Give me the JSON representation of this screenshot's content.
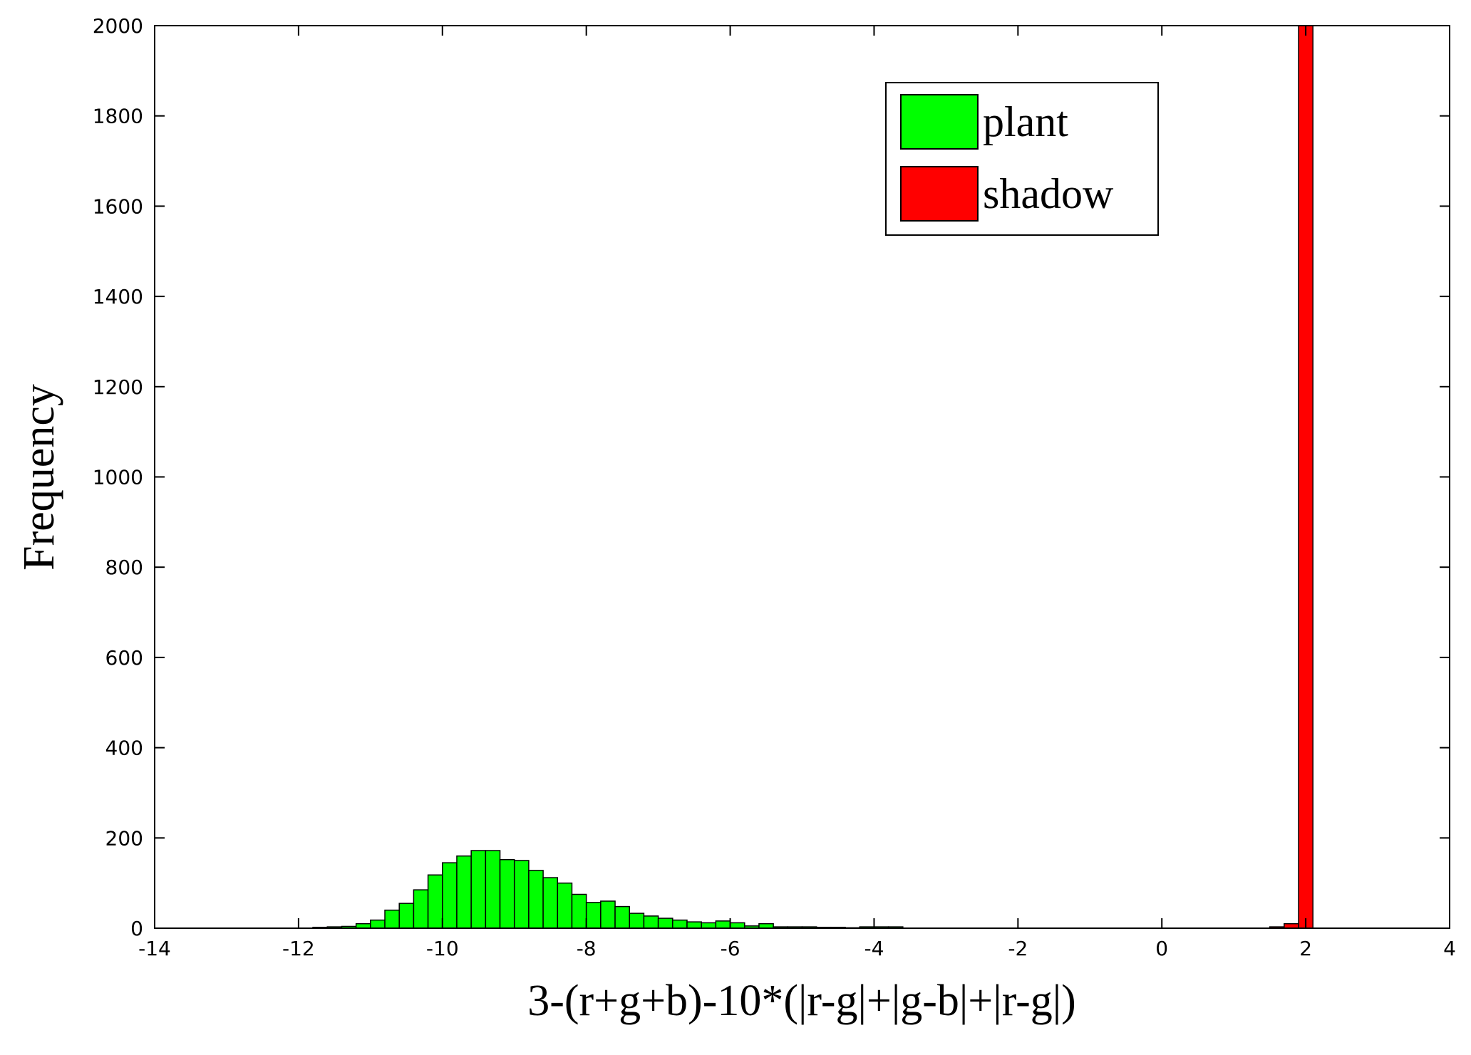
{
  "chart_data": {
    "type": "histogram",
    "xlabel": "3-(r+g+b)-10*(|r-g|+|g-b|+|r-g|)",
    "ylabel": "Frequency",
    "xlim": [
      -14,
      4
    ],
    "ylim": [
      0,
      2000
    ],
    "xticks": [
      -14,
      -12,
      -10,
      -8,
      -6,
      -4,
      -2,
      0,
      2,
      4
    ],
    "yticks": [
      0,
      200,
      400,
      600,
      800,
      1000,
      1200,
      1400,
      1600,
      1800,
      2000
    ],
    "legend": "upper right",
    "series": [
      {
        "name": "plant",
        "color": "#00ff00",
        "bins": [
          -11.8,
          -11.6,
          -11.4,
          -11.2,
          -11.0,
          -10.8,
          -10.6,
          -10.4,
          -10.2,
          -10.0,
          -9.8,
          -9.6,
          -9.4,
          -9.2,
          -9.0,
          -8.8,
          -8.6,
          -8.4,
          -8.2,
          -8.0,
          -7.8,
          -7.6,
          -7.4,
          -7.2,
          -7.0,
          -6.8,
          -6.6,
          -6.4,
          -6.2,
          -6.0,
          -5.8,
          -5.6,
          -5.4,
          -5.2,
          -5.0,
          -4.8,
          -4.6,
          -4.4,
          -4.2,
          -4.0,
          -3.8,
          -3.6
        ],
        "values": [
          2,
          3,
          4,
          10,
          18,
          40,
          55,
          85,
          118,
          145,
          160,
          172,
          172,
          152,
          150,
          128,
          112,
          100,
          75,
          57,
          60,
          48,
          33,
          27,
          22,
          18,
          14,
          12,
          16,
          12,
          5,
          10,
          3,
          3,
          3,
          2,
          2,
          1,
          3,
          3,
          3
        ]
      },
      {
        "name": "shadow",
        "color": "#ff0000",
        "bins": [
          1.5,
          1.7,
          1.9,
          2.1
        ],
        "values": [
          3,
          10,
          2000
        ]
      }
    ]
  }
}
